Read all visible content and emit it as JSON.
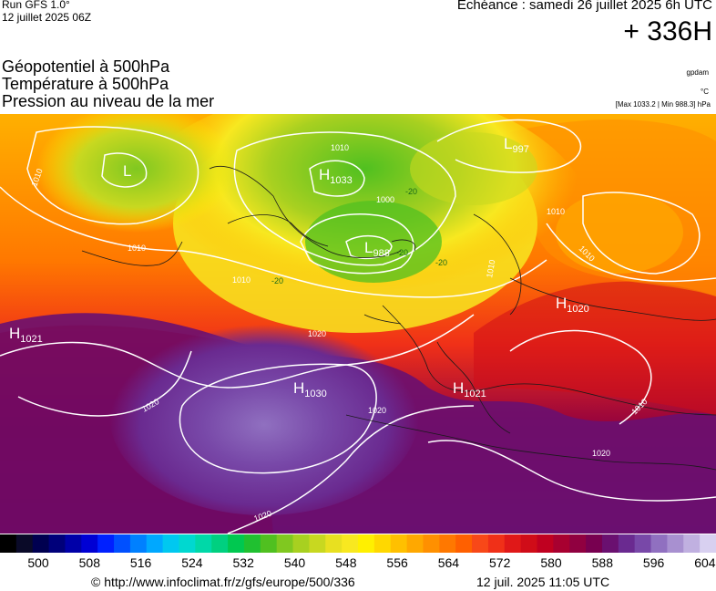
{
  "header": {
    "run_title": "Run GFS 1.0°",
    "run_date": "12 juillet 2025 06Z",
    "valid_label": "Echéance : samedi 26 juillet 2025 6h UTC",
    "lead_time": "+ 336H"
  },
  "parameters": [
    "Géopotentiel à 500hPa",
    "Température à 500hPa",
    "Pression au niveau de la mer"
  ],
  "units": {
    "geopotential": "gpdam",
    "temperature": "°C",
    "pressure_minmax": "[Max 1033.2 | Min 988.3] hPa"
  },
  "pressure_centers": [
    {
      "type": "L",
      "value": ""
    },
    {
      "type": "H",
      "value": "1033"
    },
    {
      "type": "L",
      "value": "997"
    },
    {
      "type": "L",
      "value": "988"
    },
    {
      "type": "H",
      "value": "1020"
    },
    {
      "type": "H",
      "value": "1021"
    },
    {
      "type": "H",
      "value": "1030"
    },
    {
      "type": "H",
      "value": "1021"
    }
  ],
  "isobar_labels": [
    "1010",
    "1010",
    "1010",
    "1010",
    "1000",
    "1010",
    "1010",
    "1020",
    "1020",
    "1020",
    "1020",
    "1010",
    "1010",
    "1020"
  ],
  "temperature_labels": [
    "-20",
    "-20",
    "-20",
    "-20"
  ],
  "colorbar": {
    "ticks": [
      "500",
      "508",
      "516",
      "524",
      "532",
      "540",
      "548",
      "556",
      "564",
      "572",
      "580",
      "588",
      "596",
      "604"
    ],
    "colors": [
      "#000000",
      "#0a0a28",
      "#000050",
      "#00007a",
      "#0000a8",
      "#0000d4",
      "#0020ff",
      "#0050ff",
      "#0080ff",
      "#00a8ff",
      "#00c8f0",
      "#00d8d0",
      "#00d8a8",
      "#00d080",
      "#00c850",
      "#20c030",
      "#50c020",
      "#80c820",
      "#a8d020",
      "#c8d820",
      "#e8e020",
      "#f8e820",
      "#fff000",
      "#ffd800",
      "#ffc000",
      "#ffa800",
      "#ff9000",
      "#ff7800",
      "#ff6000",
      "#f84818",
      "#f03018",
      "#e01818",
      "#d00c18",
      "#c00020",
      "#a80030",
      "#900040",
      "#780050",
      "#6a1070",
      "#6a2a90",
      "#7848a8",
      "#9070c0",
      "#a890d0",
      "#c0b0e0",
      "#d8d0f0"
    ]
  },
  "footer": {
    "source": "© http://www.infoclimat.fr/z/gfs/europe/500/336",
    "timestamp": "12 juil. 2025 11:05 UTC"
  }
}
